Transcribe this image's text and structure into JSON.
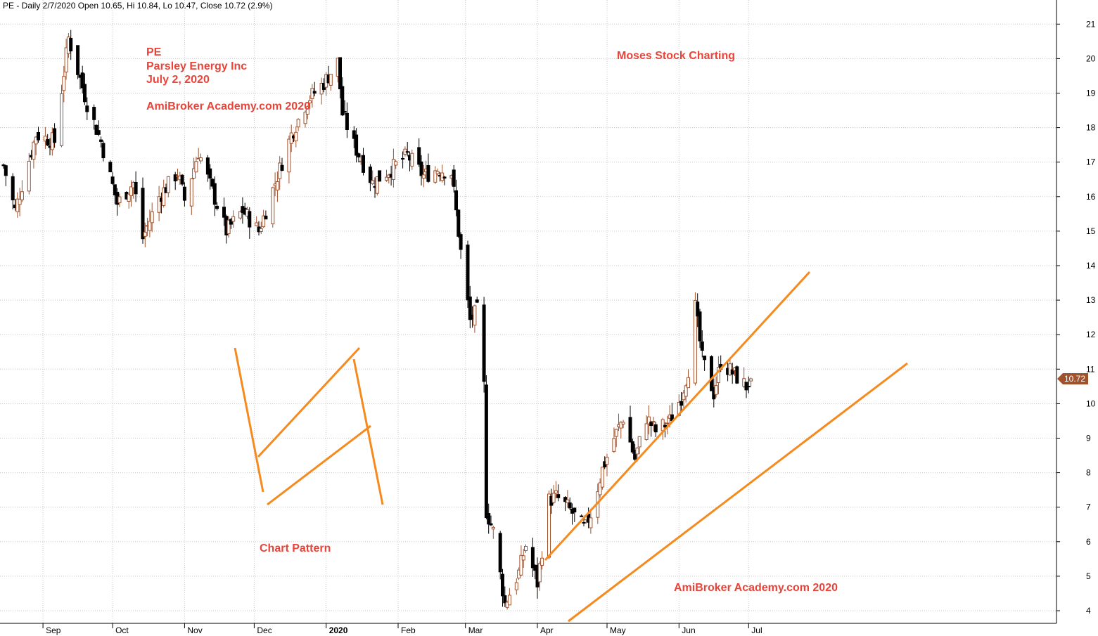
{
  "header": "PE - Daily 2/7/2020 Open 10.65, Hi 10.84, Lo 10.47, Close 10.72 (2.9%)",
  "annotations": {
    "ticker": "PE",
    "company": "Parsley Energy Inc",
    "date": "July 2, 2020",
    "site_top": "AmiBroker Academy.com  2020",
    "moses": "Moses Stock Charting",
    "chart_pattern": "Chart Pattern",
    "site_bottom": "AmiBroker Academy.com  2020"
  },
  "chart_data": {
    "type": "candlestick",
    "title": "PE - Daily",
    "x_labels": [
      "Sep",
      "Oct",
      "Nov",
      "Dec",
      "2020",
      "Feb",
      "Mar",
      "Apr",
      "May",
      "Jun",
      "Jul"
    ],
    "y_ticks": [
      4,
      5,
      6,
      7,
      8,
      9,
      10,
      11,
      12,
      13,
      14,
      15,
      16,
      17,
      18,
      19,
      20,
      21
    ],
    "ylim": [
      3.6,
      21.6
    ],
    "last_price_label": "10.72",
    "last_close": 10.72,
    "grid": true,
    "colors": {
      "up": "#a0522d",
      "down": "#000000",
      "trendline": "#f58a1f",
      "annotation": "#e8443a",
      "price_tag": "#a0522d"
    },
    "series": [
      {
        "name": "PE",
        "anchors": [
          [
            "2019-08-15",
            16.9
          ],
          [
            "2019-08-20",
            15.6
          ],
          [
            "2019-08-29",
            17.8
          ],
          [
            "2019-09-06",
            17.6
          ],
          [
            "2019-09-12",
            20.6
          ],
          [
            "2019-09-20",
            18.7
          ],
          [
            "2019-09-26",
            17.6
          ],
          [
            "2019-10-03",
            15.8
          ],
          [
            "2019-10-10",
            16.4
          ],
          [
            "2019-10-14",
            14.8
          ],
          [
            "2019-10-21",
            16.0
          ],
          [
            "2019-10-29",
            16.7
          ],
          [
            "2019-11-01",
            15.9
          ],
          [
            "2019-11-07",
            17.3
          ],
          [
            "2019-11-19",
            15.0
          ],
          [
            "2019-11-26",
            15.6
          ],
          [
            "2019-12-03",
            15.0
          ],
          [
            "2019-12-10",
            16.4
          ],
          [
            "2019-12-17",
            17.8
          ],
          [
            "2019-12-24",
            18.8
          ],
          [
            "2019-12-31",
            19.3
          ],
          [
            "2020-01-06",
            19.9
          ],
          [
            "2020-01-08",
            18.4
          ],
          [
            "2020-01-13",
            17.5
          ],
          [
            "2020-01-21",
            16.4
          ],
          [
            "2020-01-29",
            16.8
          ],
          [
            "2020-02-05",
            17.2
          ],
          [
            "2020-02-12",
            16.6
          ],
          [
            "2020-02-18",
            16.8
          ],
          [
            "2020-02-24",
            16.7
          ],
          [
            "2020-02-28",
            14.4
          ],
          [
            "2020-03-03",
            12.4
          ],
          [
            "2020-03-06",
            12.7
          ],
          [
            "2020-03-09",
            10.5
          ],
          [
            "2020-03-10",
            6.9
          ],
          [
            "2020-03-13",
            6.3
          ],
          [
            "2020-03-18",
            4.2
          ],
          [
            "2020-03-24",
            5.1
          ],
          [
            "2020-03-27",
            5.9
          ],
          [
            "2020-04-01",
            4.8
          ],
          [
            "2020-04-06",
            7.2
          ],
          [
            "2020-04-09",
            7.3
          ],
          [
            "2020-04-14",
            7.0
          ],
          [
            "2020-04-21",
            6.4
          ],
          [
            "2020-04-24",
            6.8
          ],
          [
            "2020-04-29",
            8.1
          ],
          [
            "2020-05-04",
            9.0
          ],
          [
            "2020-05-08",
            9.6
          ],
          [
            "2020-05-13",
            8.4
          ],
          [
            "2020-05-18",
            9.6
          ],
          [
            "2020-05-22",
            9.2
          ],
          [
            "2020-05-28",
            9.5
          ],
          [
            "2020-06-02",
            10.2
          ],
          [
            "2020-06-05",
            11.0
          ],
          [
            "2020-06-08",
            12.8
          ],
          [
            "2020-06-11",
            11.3
          ],
          [
            "2020-06-16",
            10.3
          ],
          [
            "2020-06-19",
            11.2
          ],
          [
            "2020-06-24",
            10.9
          ],
          [
            "2020-06-30",
            10.5
          ],
          [
            "2020-07-02",
            10.72
          ]
        ]
      }
    ]
  }
}
